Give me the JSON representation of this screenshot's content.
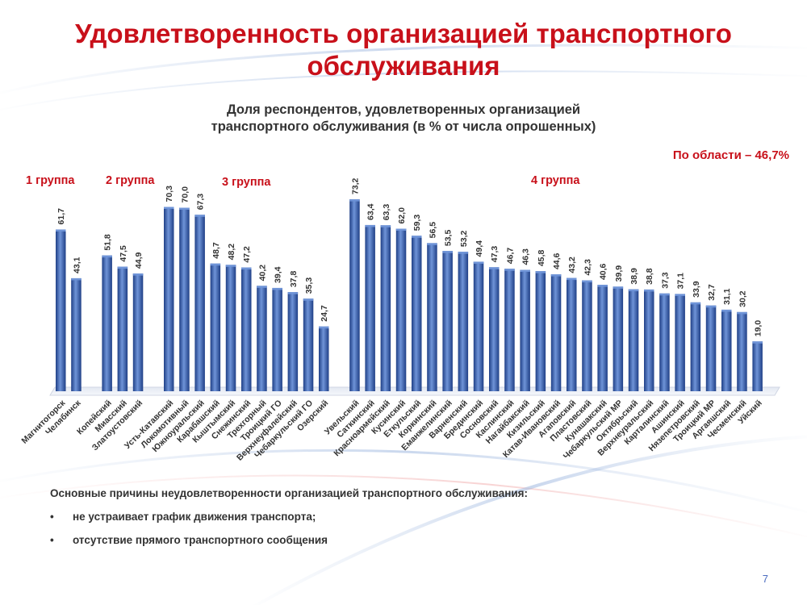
{
  "title": "Удовлетворенность организацией транспортного обслуживания",
  "subtitle": "Доля респондентов, удовлетворенных организацией транспортного обслуживания (в % от числа опрошенных)",
  "region_note": "По области – 46,7%",
  "groups": [
    {
      "label": "1 группа",
      "count": 2
    },
    {
      "label": "2 группа",
      "count": 3
    },
    {
      "label": "3 группа",
      "count": 11
    },
    {
      "label": "4 группа",
      "count": 27
    }
  ],
  "chart_data": {
    "type": "bar",
    "title": "Доля респондентов, удовлетворенных организацией транспортного обслуживания (в % от числа опрошенных)",
    "categories": [
      "Магнитогорск",
      "Челябинск",
      "Копейский",
      "Миасский",
      "Златоустовский",
      "Усть-Катавский",
      "Локомотивный",
      "Южноуральский",
      "Карабашский",
      "Кыштымский",
      "Снежинский",
      "Трехгорный",
      "Троицкий ГО",
      "Верхнеуфалейский",
      "Чебаркульский ГО",
      "Озерский",
      "Увельский",
      "Саткинский",
      "Красноармейский",
      "Кусинский",
      "Еткульский",
      "Коркинский",
      "Еманжелинский",
      "Варненский",
      "Брединский",
      "Сосновский",
      "Каслинский",
      "Нагайбакский",
      "Кизильский",
      "Катав-Ивановский",
      "Агаповский",
      "Пластовский",
      "Кунашакский",
      "Чебаркульский МР",
      "Октябрьский",
      "Верхнеуральский",
      "Карталинский",
      "Ашинский",
      "Нязепетровский",
      "Троицкий МР",
      "Аргаяшский",
      "Чесменский",
      "Уйский"
    ],
    "values": [
      61.7,
      43.1,
      51.8,
      47.5,
      44.9,
      70.3,
      70.0,
      67.3,
      48.7,
      48.2,
      47.2,
      40.2,
      39.4,
      37.8,
      35.3,
      24.7,
      73.2,
      63.4,
      63.3,
      62.0,
      59.3,
      56.5,
      53.5,
      53.2,
      49.4,
      47.3,
      46.7,
      46.3,
      45.8,
      44.6,
      43.2,
      42.3,
      40.6,
      39.9,
      38.9,
      38.8,
      37.3,
      37.1,
      33.9,
      32.7,
      31.1,
      30.2,
      19.0
    ],
    "value_labels": [
      "61,7",
      "43,1",
      "51,8",
      "47,5",
      "44,9",
      "70,3",
      "70,0",
      "67,3",
      "48,7",
      "48,2",
      "47,2",
      "40,2",
      "39,4",
      "37,8",
      "35,3",
      "24,7",
      "73,2",
      "63,4",
      "63,3",
      "62,0",
      "59,3",
      "56,5",
      "53,5",
      "53,2",
      "49,4",
      "47,3",
      "46,7",
      "46,3",
      "45,8",
      "44,6",
      "43,2",
      "42,3",
      "40,6",
      "39,9",
      "38,9",
      "38,8",
      "37,3",
      "37,1",
      "33,9",
      "32,7",
      "31,1",
      "30,2",
      "19,0"
    ],
    "ylim": [
      0,
      80
    ],
    "grid": false,
    "colors": {
      "bar": "#3f66b8",
      "bar_dark": "#1f3f86",
      "bar_light": "#6f94d8",
      "label": "#333333"
    }
  },
  "reasons": {
    "title": "Основные причины неудовлетворенности организацией транспортного обслуживания:",
    "bullet": "•",
    "items": [
      "не устраивает график движения транспорта;",
      "отсутствие прямого транспортного сообщения"
    ]
  },
  "page_number": "7"
}
